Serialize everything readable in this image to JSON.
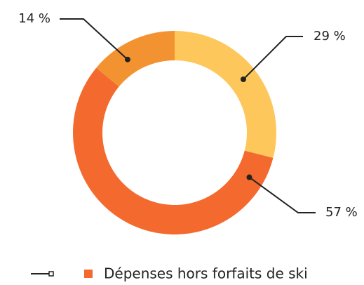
{
  "chart_data": {
    "type": "pie",
    "categories": [
      null,
      "Dépenses hors forfaits de ski",
      null
    ],
    "values": [
      29,
      57,
      14
    ],
    "value_labels": [
      "29 %",
      "57 %",
      "14 %"
    ],
    "colors": [
      "#fdc75c",
      "#f4692d",
      "#f39230"
    ],
    "donut": true
  }
}
